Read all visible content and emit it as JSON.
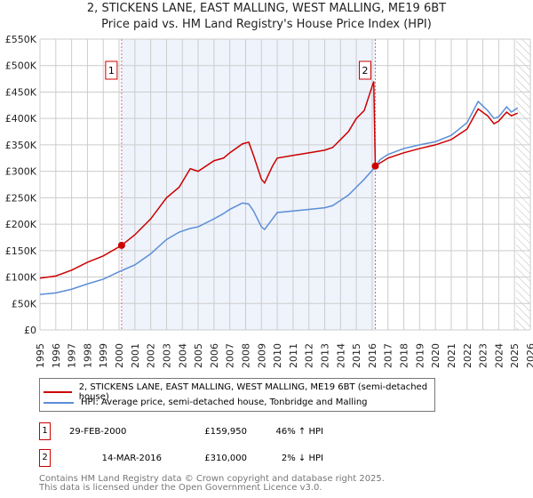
{
  "chart_data": {
    "type": "line",
    "title": "2, STICKENS LANE, EAST MALLING, WEST MALLING, ME19 6BT",
    "subtitle": "Price paid vs. HM Land Registry's House Price Index (HPI)",
    "xlim": [
      1995,
      2026
    ],
    "ylim": [
      0,
      550000
    ],
    "x_ticks": [
      "1995",
      "1996",
      "1997",
      "1998",
      "1999",
      "2000",
      "2001",
      "2002",
      "2003",
      "2004",
      "2005",
      "2006",
      "2007",
      "2008",
      "2009",
      "2010",
      "2011",
      "2012",
      "2013",
      "2014",
      "2015",
      "2016",
      "2017",
      "2018",
      "2019",
      "2020",
      "2021",
      "2022",
      "2023",
      "2024",
      "2025",
      "2026"
    ],
    "y_ticks": [
      {
        "v": 0,
        "label": "£0"
      },
      {
        "v": 50000,
        "label": "£50K"
      },
      {
        "v": 100000,
        "label": "£100K"
      },
      {
        "v": 150000,
        "label": "£150K"
      },
      {
        "v": 200000,
        "label": "£200K"
      },
      {
        "v": 250000,
        "label": "£250K"
      },
      {
        "v": 300000,
        "label": "£300K"
      },
      {
        "v": 350000,
        "label": "£350K"
      },
      {
        "v": 400000,
        "label": "£400K"
      },
      {
        "v": 450000,
        "label": "£450K"
      },
      {
        "v": 500000,
        "label": "£500K"
      },
      {
        "v": 550000,
        "label": "£550K"
      }
    ],
    "grid": true,
    "series": [
      {
        "name": "2, STICKENS LANE, EAST MALLING, WEST MALLING, ME19 6BT (semi-detached house)",
        "color": "#cc0000",
        "x": [
          1995,
          1996,
          1997,
          1998,
          1999,
          2000.16,
          2001,
          2002,
          2003,
          2003.8,
          2004.5,
          2005,
          2006,
          2006.6,
          2007,
          2007.8,
          2008.2,
          2008.5,
          2009,
          2009.2,
          2009.7,
          2010,
          2011,
          2012,
          2013,
          2013.5,
          2014,
          2014.5,
          2015,
          2015.5,
          2016.1,
          2016.2,
          2017,
          2018,
          2019,
          2020,
          2021,
          2022,
          2022.7,
          2023.3,
          2023.7,
          2024,
          2024.5,
          2024.8,
          2025.2
        ],
        "y": [
          98000,
          102000,
          113000,
          128000,
          140000,
          159950,
          180000,
          210000,
          250000,
          270000,
          305000,
          300000,
          320000,
          325000,
          335000,
          352000,
          355000,
          330000,
          285000,
          278000,
          310000,
          325000,
          330000,
          335000,
          340000,
          345000,
          360000,
          375000,
          400000,
          415000,
          470000,
          310000,
          325000,
          335000,
          343000,
          350000,
          360000,
          380000,
          418000,
          405000,
          390000,
          395000,
          412000,
          405000,
          410000
        ]
      },
      {
        "name": "HPI: Average price, semi-detached house, Tonbridge and Malling",
        "color": "#5b8ed6",
        "x": [
          1995,
          1996,
          1997,
          1998,
          1999,
          2000,
          2001,
          2002,
          2003,
          2003.8,
          2004.5,
          2005,
          2006,
          2006.6,
          2007,
          2007.8,
          2008.2,
          2008.5,
          2009,
          2009.2,
          2009.7,
          2010,
          2011,
          2012,
          2013,
          2013.5,
          2014,
          2014.5,
          2015,
          2015.5,
          2016.1,
          2016.5,
          2017,
          2018,
          2019,
          2020,
          2021,
          2022,
          2022.7,
          2023.3,
          2023.7,
          2024,
          2024.5,
          2024.8,
          2025.2
        ],
        "y": [
          67000,
          70000,
          77000,
          87000,
          96000,
          110000,
          123000,
          144000,
          171000,
          185000,
          192000,
          195000,
          210000,
          220000,
          228000,
          240000,
          238000,
          225000,
          195000,
          190000,
          210000,
          222000,
          225000,
          228000,
          231000,
          235000,
          245000,
          255000,
          270000,
          285000,
          305000,
          322000,
          332000,
          343000,
          350000,
          356000,
          368000,
          392000,
          432000,
          415000,
          400000,
          403000,
          422000,
          412000,
          420000
        ]
      }
    ],
    "sales": [
      {
        "label": "1",
        "x": 2000.16,
        "y": 159950
      },
      {
        "label": "2",
        "x": 2016.2,
        "y": 310000
      }
    ],
    "forecast_hatch_from": 2025.1
  },
  "legend": {
    "red": "2, STICKENS LANE, EAST MALLING, WEST MALLING, ME19 6BT (semi-detached house)",
    "blue": "HPI: Average price, semi-detached house, Tonbridge and Malling"
  },
  "table": [
    {
      "num": "1",
      "date": "29-FEB-2000",
      "price": "£159,950",
      "hpi": "46% ↑ HPI"
    },
    {
      "num": "2",
      "date": "14-MAR-2016",
      "price": "£310,000",
      "hpi": "2% ↓ HPI"
    }
  ],
  "footer": {
    "line1": "Contains HM Land Registry data © Crown copyright and database right 2025.",
    "line2": "This data is licensed under the Open Government Licence v3.0."
  }
}
